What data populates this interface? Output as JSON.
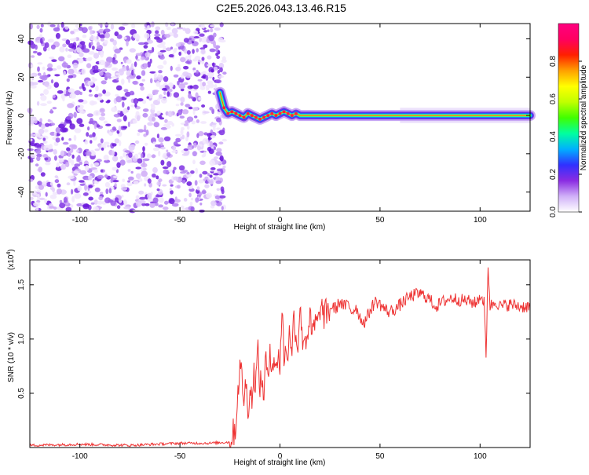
{
  "title": "C2E5.2026.043.13.46.R15",
  "chart_data": [
    {
      "type": "heatmap",
      "panel": "top",
      "xlabel": "Height of straight line (km)",
      "ylabel": "Frequency (Hz)",
      "xlim": [
        -125,
        125
      ],
      "ylim": [
        -50,
        48
      ],
      "xticks": [
        -100,
        -50,
        0,
        50,
        100
      ],
      "yticks": [
        -40,
        -20,
        0,
        20,
        40
      ],
      "noise_region_x": [
        -125,
        -30
      ],
      "signal_track": {
        "x": [
          -30,
          -28,
          -26,
          -24,
          -22,
          -20,
          -18,
          -16,
          -14,
          -12,
          -10,
          -8,
          -6,
          -4,
          -2,
          0,
          2,
          4,
          6,
          8,
          10,
          20,
          40,
          60,
          80,
          100,
          125
        ],
        "y": [
          12,
          4,
          1,
          2,
          1,
          0,
          -1,
          1,
          0,
          -1,
          -2,
          -1,
          0,
          1,
          0,
          1,
          2,
          1,
          0,
          1,
          0,
          0,
          0,
          0,
          0,
          0,
          0
        ]
      },
      "colorbar": {
        "label": "Normalized spectral amplitude",
        "ticks": [
          0.0,
          0.2,
          0.4,
          0.6,
          0.8
        ],
        "range": [
          0,
          1
        ],
        "colors": [
          "#ffffff",
          "#d0b0f8",
          "#8a2be2",
          "#3030ff",
          "#00b0ff",
          "#00ffa0",
          "#40ff00",
          "#c0ff00",
          "#ffff00",
          "#ffa000",
          "#ff2000",
          "#ff0060",
          "#ff0080"
        ]
      }
    },
    {
      "type": "line",
      "panel": "bottom",
      "xlabel": "Height of straight line (km)",
      "ylabel": "SNR (10 * v/v)",
      "scale_note": "(x10",
      "scale_exp": "4",
      "scale_close": ")",
      "xlim": [
        -125,
        125
      ],
      "ylim": [
        0,
        1.73
      ],
      "xticks": [
        -100,
        -50,
        0,
        50,
        100
      ],
      "yticks": [
        0.5,
        1.0,
        1.5
      ],
      "color": "#ee3333",
      "series": [
        {
          "name": "SNR",
          "x": [
            -125,
            -100,
            -75,
            -50,
            -35,
            -25,
            -22,
            -21,
            -20,
            -19,
            -18,
            -17,
            -16,
            -15,
            -14,
            -13,
            -12,
            -11,
            -10,
            -9,
            -8,
            -7,
            -6,
            -5,
            -4,
            -3,
            -2,
            -1,
            0,
            1,
            2,
            3,
            4,
            5,
            6,
            7,
            8,
            9,
            10,
            11,
            12,
            13,
            14,
            15,
            16,
            17,
            18,
            19,
            20,
            22,
            24,
            26,
            28,
            30,
            32,
            34,
            36,
            38,
            40,
            42,
            44,
            46,
            48,
            50,
            54,
            58,
            62,
            66,
            70,
            74,
            78,
            82,
            86,
            90,
            94,
            98,
            100,
            102,
            103,
            104,
            105,
            106,
            108,
            110,
            115,
            120,
            125
          ],
          "y": [
            0.02,
            0.03,
            0.02,
            0.04,
            0.04,
            0.05,
            0.2,
            0.55,
            0.72,
            0.65,
            0.45,
            0.58,
            0.38,
            0.52,
            0.46,
            0.68,
            0.62,
            0.9,
            0.55,
            0.62,
            0.5,
            0.85,
            0.55,
            0.95,
            0.75,
            0.85,
            0.65,
            0.92,
            0.72,
            1.3,
            0.85,
            0.88,
            0.9,
            1.1,
            0.8,
            1.3,
            1.0,
            0.95,
            1.35,
            1.0,
            1.05,
            0.98,
            1.1,
            1.2,
            1.0,
            1.12,
            1.15,
            1.12,
            1.3,
            1.22,
            1.25,
            1.3,
            1.28,
            1.35,
            1.3,
            1.32,
            1.25,
            1.3,
            1.2,
            1.15,
            1.22,
            1.3,
            1.35,
            1.32,
            1.25,
            1.28,
            1.35,
            1.4,
            1.42,
            1.38,
            1.3,
            1.35,
            1.38,
            1.36,
            1.35,
            1.33,
            1.4,
            1.35,
            0.82,
            1.7,
            1.3,
            1.32,
            1.35,
            1.3,
            1.32,
            1.3,
            1.3
          ]
        }
      ]
    }
  ]
}
